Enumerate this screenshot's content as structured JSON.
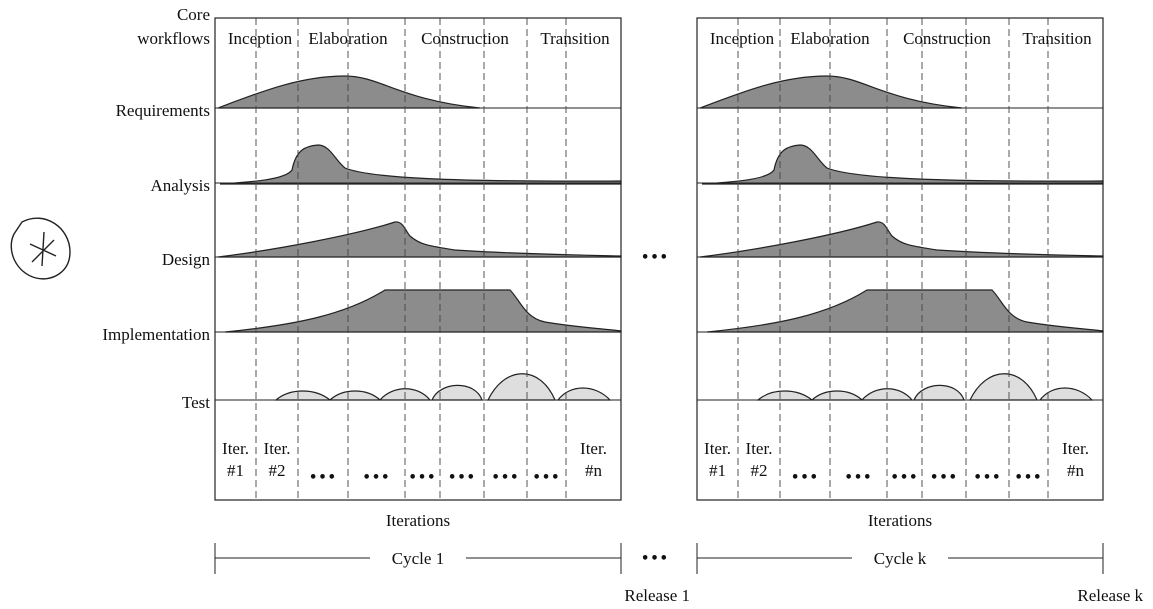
{
  "header": [
    "Core",
    "workflows"
  ],
  "workflows": [
    "Requirements",
    "Analysis",
    "Design",
    "Implementation",
    "Test"
  ],
  "panels": [
    {
      "phases": [
        "Inception",
        "Elaboration",
        "Construction",
        "Transition"
      ],
      "iterations": [
        [
          "Iter.",
          "#1"
        ],
        [
          "Iter.",
          "#2"
        ],
        [
          "•••"
        ],
        [
          "•••"
        ],
        [
          "•••"
        ],
        [
          "•••"
        ],
        [
          "•••"
        ],
        [
          "•••"
        ],
        [
          "Iter.",
          "#n"
        ]
      ],
      "axis_label": "Iterations",
      "cycle": "Cycle 1",
      "release": "Release 1"
    },
    {
      "phases": [
        "Inception",
        "Elaboration",
        "Construction",
        "Transition"
      ],
      "iterations": [
        [
          "Iter.",
          "#1"
        ],
        [
          "Iter.",
          "#2"
        ],
        [
          "•••"
        ],
        [
          "•••"
        ],
        [
          "•••"
        ],
        [
          "•••"
        ],
        [
          "•••"
        ],
        [
          "•••"
        ],
        [
          "Iter.",
          "#n"
        ]
      ],
      "axis_label": "Iterations",
      "cycle": "Cycle k",
      "release": "Release k"
    }
  ],
  "between_panels": [
    "•••",
    "•••"
  ]
}
